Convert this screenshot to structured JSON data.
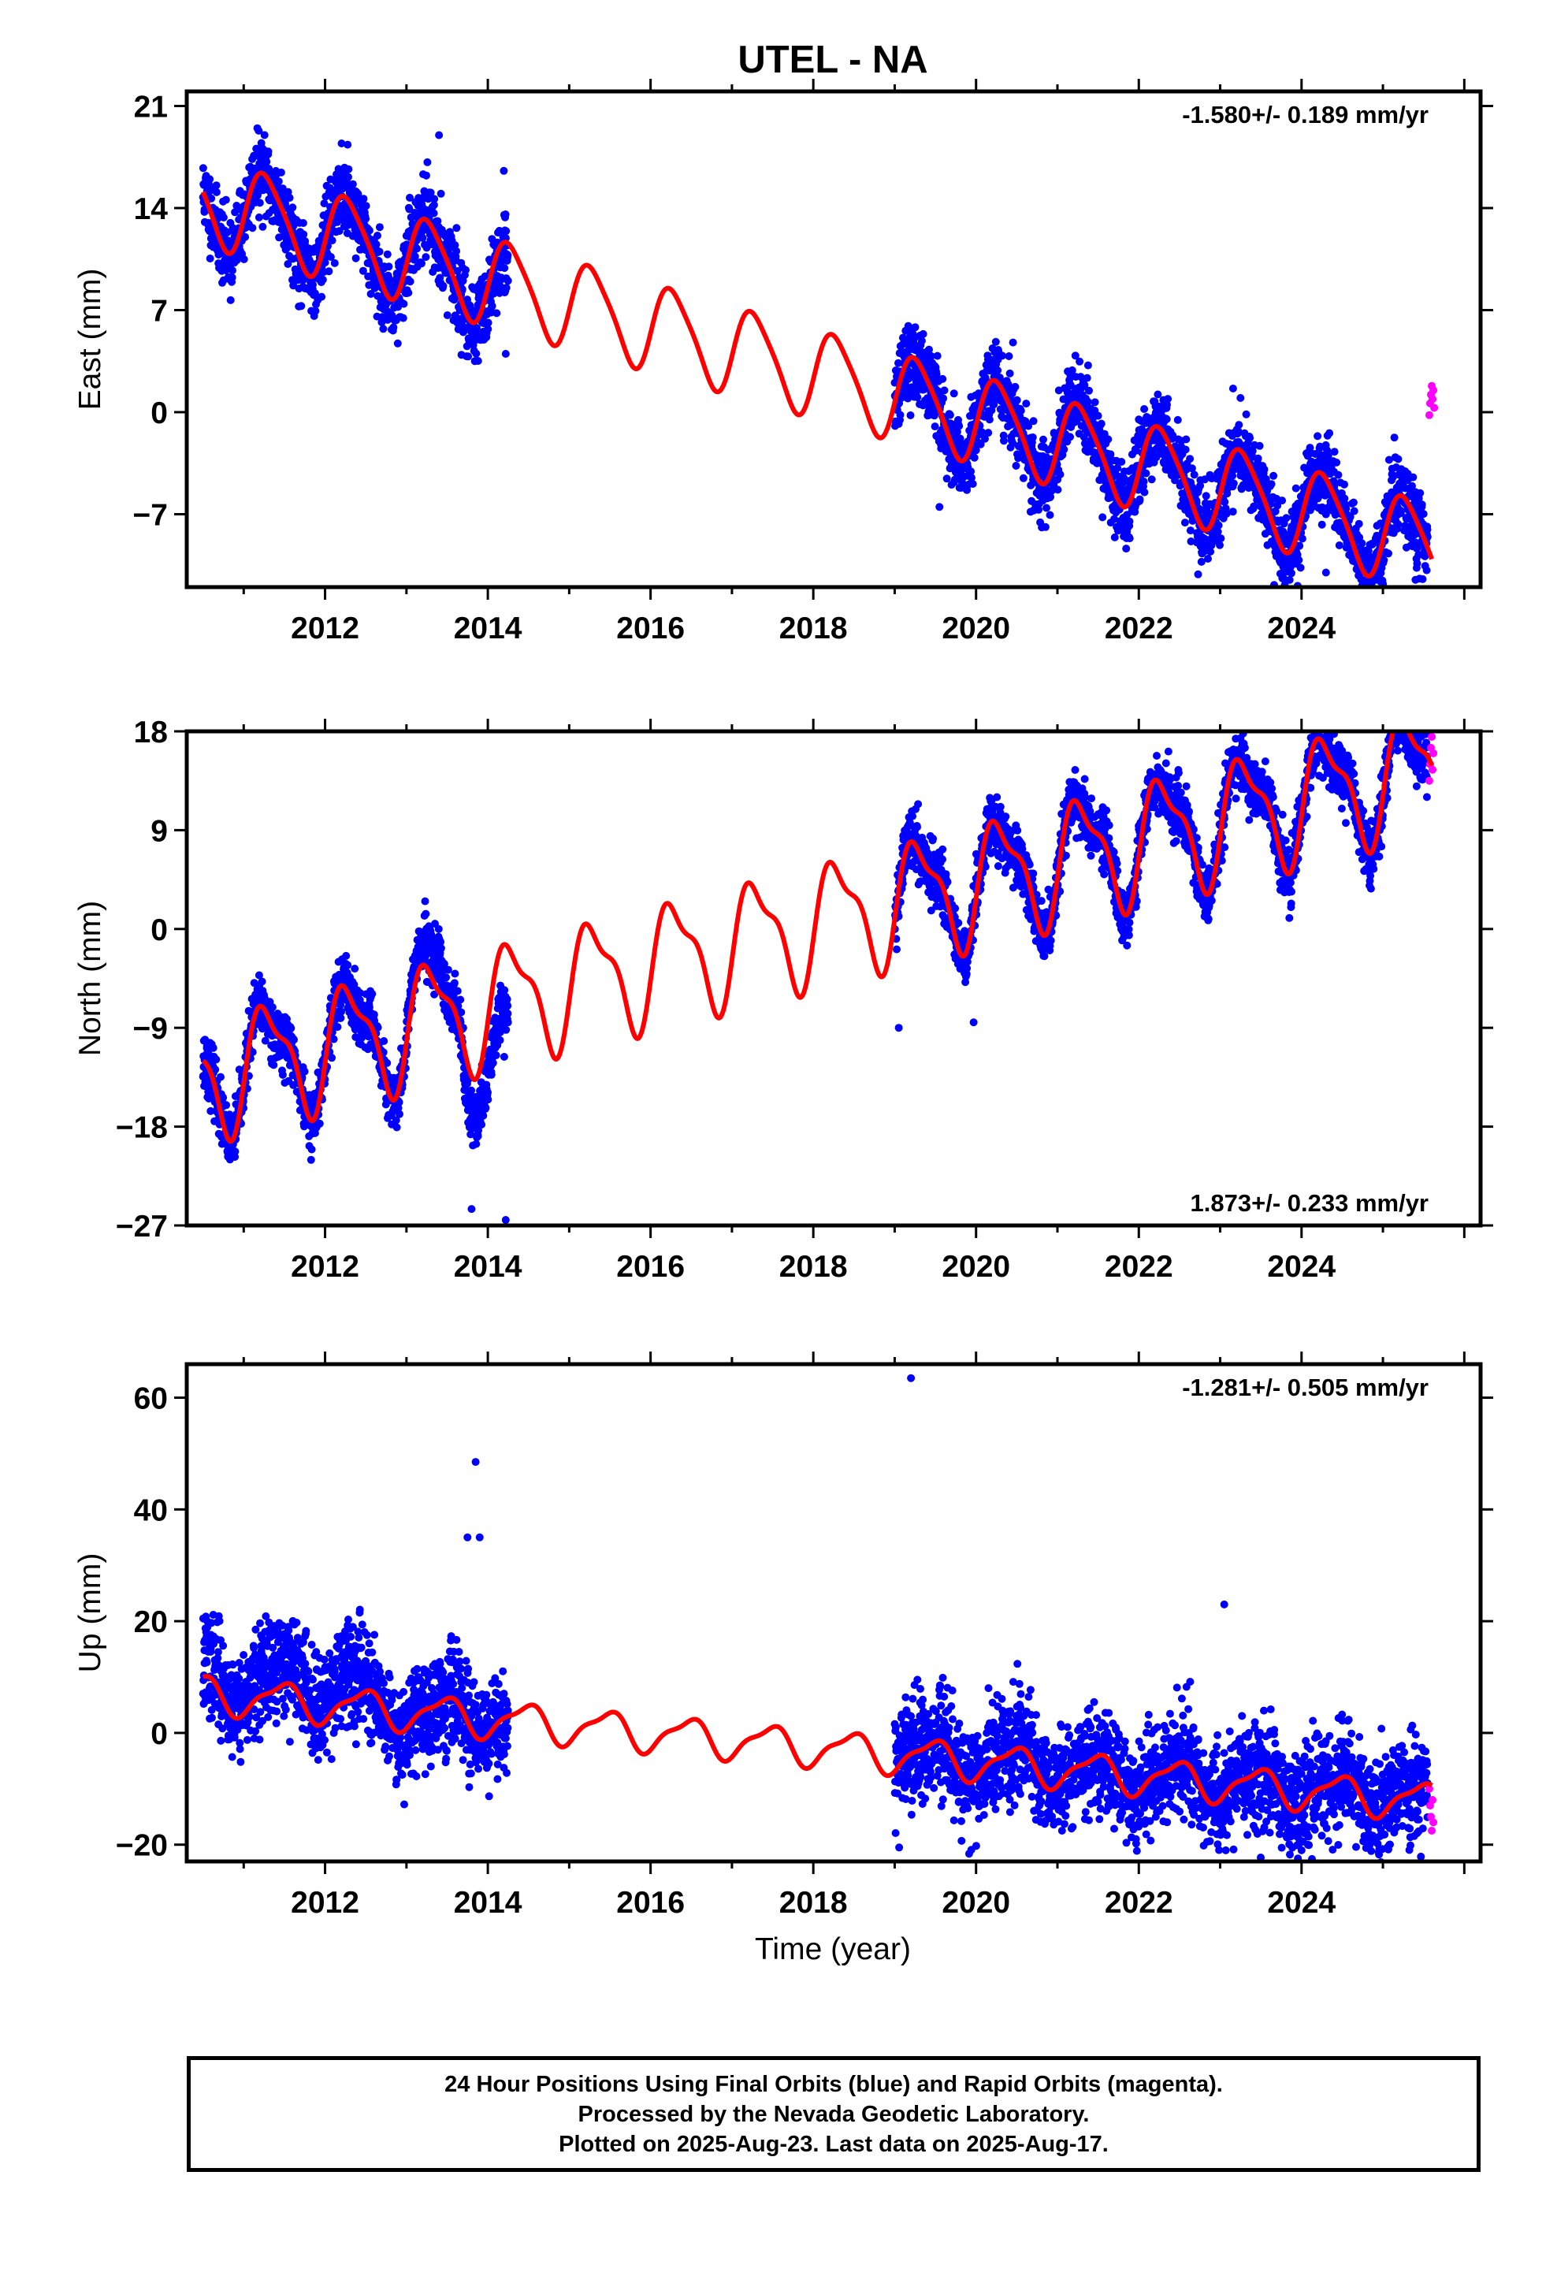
{
  "title": "UTEL - NA",
  "x_axis_label": "Time (year)",
  "footer": {
    "line1": "24 Hour Positions Using Final Orbits (blue) and Rapid Orbits (magenta).",
    "line2": "Processed by the Nevada Geodetic Laboratory.",
    "line3": "Plotted on 2025-Aug-23. Last data on 2025-Aug-17."
  },
  "colors": {
    "final_orbits": "#0000ff",
    "rapid_orbits": "#ff00ff",
    "model_fit": "#ff0000",
    "frame": "#000000"
  },
  "chart_data": [
    {
      "type": "scatter",
      "component": "east",
      "ylabel": "East (mm)",
      "xlim": [
        2010.3,
        2026.2
      ],
      "ylim": [
        -12,
        22
      ],
      "xticks": [
        2012,
        2014,
        2016,
        2018,
        2020,
        2022,
        2024
      ],
      "yticks": [
        21,
        14,
        7,
        0,
        -7
      ],
      "ytick_labels": [
        "21",
        "14",
        "7",
        "0",
        "−7"
      ],
      "rate_label": "-1.580+/- 0.189 mm/yr",
      "rate_position": "top-right",
      "model": {
        "start": 2010.5,
        "end": 2025.6,
        "value_at_start": 15.1,
        "trend_mm_per_yr": -1.58,
        "annual_cos": -0.5,
        "annual_sin": 2.9,
        "annual_phase_ref_year": 2010.0,
        "semiannual_amplitude": 0.5
      },
      "series": [
        {
          "name": "Final Orbits (blue)",
          "color": "#0000ff",
          "segments": [
            [
              2010.5,
              2014.25
            ],
            [
              2019.0,
              2025.55
            ]
          ],
          "noise_sd": 1.3,
          "seed": 11,
          "offsets": [
            {
              "range": [
                2013.9,
                2014.25
              ],
              "offset": -1.2
            }
          ]
        },
        {
          "name": "Rapid Orbits (magenta)",
          "color": "#ff00ff",
          "x": [
            2025.57,
            2025.58,
            2025.59,
            2025.6,
            2025.61,
            2025.62,
            2025.63
          ],
          "y": [
            -0.2,
            0.6,
            1.2,
            1.8,
            0.9,
            1.5,
            0.3
          ]
        }
      ],
      "outliers": [
        [
          2013.4,
          19.0
        ],
        [
          2014.22,
          4.0
        ],
        [
          2025.4,
          -11.5
        ],
        [
          2024.3,
          -11.0
        ],
        [
          2019.55,
          -6.5
        ]
      ]
    },
    {
      "type": "scatter",
      "component": "north",
      "ylabel": "North (mm)",
      "xlim": [
        2010.3,
        2026.2
      ],
      "ylim": [
        -27,
        18
      ],
      "xticks": [
        2012,
        2014,
        2016,
        2018,
        2020,
        2022,
        2024
      ],
      "yticks": [
        18,
        9,
        0,
        -9,
        -18,
        -27
      ],
      "ytick_labels": [
        "18",
        "9",
        "0",
        "−9",
        "−18",
        "−27"
      ],
      "rate_label": "1.873+/- 0.233 mm/yr",
      "rate_position": "bottom-right",
      "model": {
        "start": 2010.5,
        "end": 2025.6,
        "value_at_start": -12.0,
        "trend_mm_per_yr": 1.873,
        "annual_cos": -1.5,
        "annual_sin": 4.8,
        "annual_phase_ref_year": 2010.0,
        "semiannual_amplitude": 1.8
      },
      "series": [
        {
          "name": "Final Orbits (blue)",
          "color": "#0000ff",
          "segments": [
            [
              2010.5,
              2014.25
            ],
            [
              2019.0,
              2025.55
            ]
          ],
          "noise_sd": 1.3,
          "seed": 23,
          "offsets": [
            {
              "range": [
                2013.0,
                2013.45
              ],
              "offset": 2.5
            },
            {
              "range": [
                2013.7,
                2014.25
              ],
              "offset": -6.5
            }
          ]
        },
        {
          "name": "Rapid Orbits (magenta)",
          "color": "#ff00ff",
          "x": [
            2025.57,
            2025.58,
            2025.59,
            2025.6,
            2025.61,
            2025.62
          ],
          "y": [
            13.5,
            15.0,
            16.5,
            17.5,
            14.5,
            16.0
          ]
        }
      ],
      "outliers": [
        [
          2013.8,
          -25.5
        ],
        [
          2014.22,
          -26.5
        ],
        [
          2019.05,
          -9.0
        ],
        [
          2019.97,
          -8.5
        ],
        [
          2023.85,
          1.0
        ]
      ]
    },
    {
      "type": "scatter",
      "component": "up",
      "ylabel": "Up (mm)",
      "xlim": [
        2010.3,
        2026.2
      ],
      "ylim": [
        -23,
        66
      ],
      "xticks": [
        2012,
        2014,
        2016,
        2018,
        2020,
        2022,
        2024
      ],
      "yticks": [
        60,
        40,
        20,
        0,
        -20
      ],
      "ytick_labels": [
        "60",
        "40",
        "20",
        "0",
        "−20"
      ],
      "rate_label": "-1.281+/- 0.505 mm/yr",
      "rate_position": "top-right",
      "model": {
        "start": 2010.5,
        "end": 2025.6,
        "value_at_start": 10.0,
        "trend_mm_per_yr": -1.281,
        "annual_cos": -3.0,
        "annual_sin": 0.8,
        "annual_phase_ref_year": 2010.0,
        "semiannual_amplitude": 1.0
      },
      "series": [
        {
          "name": "Final Orbits (blue)",
          "color": "#0000ff",
          "segments": [
            [
              2010.5,
              2014.25
            ],
            [
              2019.0,
              2025.55
            ]
          ],
          "noise_sd": 4.5,
          "seed": 37,
          "offsets": [
            {
              "range": [
                2010.5,
                2012.5
              ],
              "offset": 5.0
            }
          ]
        },
        {
          "name": "Rapid Orbits (magenta)",
          "color": "#ff00ff",
          "x": [
            2025.57,
            2025.58,
            2025.59,
            2025.6,
            2025.61,
            2025.62
          ],
          "y": [
            -10.0,
            -13.0,
            -15.0,
            -17.5,
            -12.0,
            -16.0
          ]
        }
      ],
      "outliers": [
        [
          2019.2,
          63.5
        ],
        [
          2013.85,
          48.5
        ],
        [
          2013.75,
          35.0
        ],
        [
          2013.9,
          35.0
        ],
        [
          2023.05,
          23.0
        ],
        [
          2024.0,
          -21.0
        ],
        [
          2013.0,
          -5.0
        ],
        [
          2013.3,
          -6.0
        ]
      ]
    }
  ]
}
